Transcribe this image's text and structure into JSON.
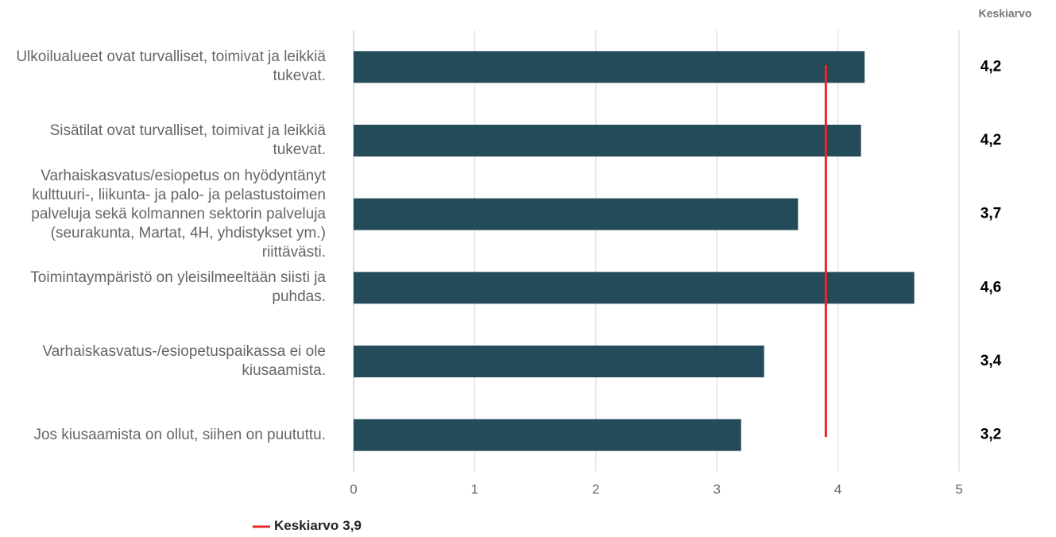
{
  "chart_data": {
    "type": "bar",
    "orientation": "horizontal",
    "categories": [
      "Ulkoilualueet ovat turvalliset, toimivat ja leikkiä tukevat.",
      "Sisätilat ovat turvalliset, toimivat ja leikkiä tukevat.",
      "Varhaiskasvatus/esiopetus on hyödyntänyt kulttuuri-, liikunta- ja palo- ja pelastustoimen palveluja sekä kolmannen sektorin palveluja (seurakunta, Martat, 4H, yhdistykset ym.) riittävästi.",
      "Toimintaympäristö on yleisilmeeltään siisti ja puhdas.",
      "Varhaiskasvatus-/esiopetuspaikassa ei ole kiusaamista.",
      "Jos kiusaamista on ollut, siihen on puututtu."
    ],
    "values": [
      4.22,
      4.19,
      3.67,
      4.63,
      3.39,
      3.2
    ],
    "value_labels": [
      "4,2",
      "4,2",
      "3,7",
      "4,6",
      "3,4",
      "3,2"
    ],
    "value_column_title": "Keskiarvo",
    "color": "#244b5a",
    "xlim": [
      0,
      5
    ],
    "xticks": [
      0,
      1,
      2,
      3,
      4,
      5
    ],
    "grid": true,
    "mean": {
      "label": "Keskiarvo",
      "value": 3.9,
      "value_label": "3,9",
      "color": "#e8262a"
    }
  }
}
